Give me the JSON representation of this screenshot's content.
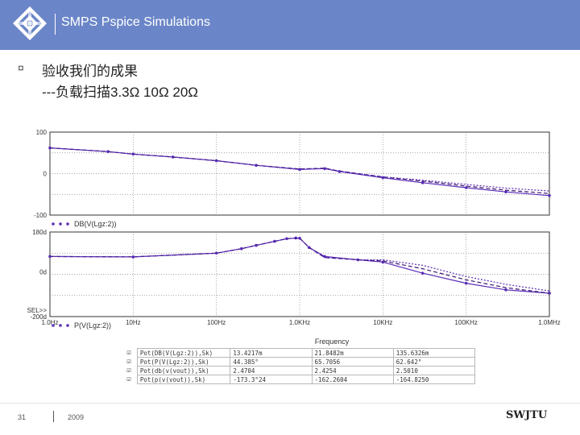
{
  "header": {
    "title": "SMPS Pspice Simulations"
  },
  "slide": {
    "bullet": "¤",
    "line1": "验收我们的成果",
    "line2": "---负载扫描3.3Ω 10Ω 20Ω"
  },
  "footer": {
    "page": "31",
    "year": "2009",
    "logo_text": "SWJTU"
  },
  "colors": {
    "accent": "#6b86c8",
    "trace": "#5a2bb8",
    "trace_dark": "#3a1470",
    "grid": "#888888"
  },
  "chart_data": [
    {
      "type": "line",
      "panel": "magnitude",
      "x_scale": "log",
      "xlim": [
        1,
        1000000
      ],
      "ylim": [
        -100,
        100
      ],
      "y_ticks": [
        {
          "v": 100,
          "label": "100"
        },
        {
          "v": 0,
          "label": "0"
        },
        {
          "v": -100,
          "label": "-100"
        }
      ],
      "legend": "DB(V(Lgz:2))",
      "series": [
        {
          "x": [
            1,
            5,
            10,
            30,
            100,
            300,
            1000,
            2000,
            3000,
            10000,
            30000,
            100000,
            300000,
            1000000
          ],
          "y": [
            62,
            53,
            47,
            40,
            31,
            20,
            10,
            12,
            5,
            -10,
            -22,
            -34,
            -44,
            -53
          ]
        },
        {
          "x": [
            1,
            5,
            10,
            30,
            100,
            300,
            1000,
            2000,
            3000,
            10000,
            30000,
            100000,
            300000,
            1000000
          ],
          "y": [
            62,
            53,
            47,
            40,
            31,
            20,
            11,
            13,
            6,
            -8,
            -18,
            -30,
            -40,
            -48
          ]
        },
        {
          "x": [
            1,
            5,
            10,
            30,
            100,
            300,
            1000,
            2000,
            3000,
            10000,
            30000,
            100000,
            300000,
            1000000
          ],
          "y": [
            62,
            53,
            47,
            40,
            31,
            20,
            11,
            13,
            6,
            -8,
            -16,
            -26,
            -35,
            -42
          ]
        }
      ]
    },
    {
      "type": "line",
      "panel": "phase",
      "x_scale": "log",
      "xlim": [
        1,
        1000000
      ],
      "ylim": [
        -200,
        180
      ],
      "y_ticks": [
        {
          "v": 180,
          "label": "180d"
        },
        {
          "v": 0,
          "label": "0d"
        },
        {
          "v": -200,
          "label": "-200d"
        }
      ],
      "y_marker_label": "SEL>>",
      "legend": "P(V(Lgz:2))",
      "x_ticks": [
        {
          "v": 1,
          "label": "1.0Hz"
        },
        {
          "v": 10,
          "label": "10Hz"
        },
        {
          "v": 100,
          "label": "100Hz"
        },
        {
          "v": 1000,
          "label": "1.0KHz"
        },
        {
          "v": 10000,
          "label": "10KHz"
        },
        {
          "v": 100000,
          "label": "100KHz"
        },
        {
          "v": 1000000,
          "label": "1.0MHz"
        }
      ],
      "xlabel": "Frequency",
      "series": [
        {
          "x": [
            1,
            10,
            100,
            200,
            300,
            500,
            700,
            900,
            1000,
            1300,
            2000,
            5000,
            10000,
            30000,
            100000,
            300000,
            1000000
          ],
          "y": [
            70,
            68,
            85,
            105,
            120,
            138,
            150,
            153,
            152,
            110,
            70,
            55,
            45,
            -5,
            -50,
            -80,
            -95
          ]
        },
        {
          "x": [
            1,
            10,
            100,
            200,
            300,
            500,
            700,
            900,
            1000,
            1300,
            2000,
            5000,
            10000,
            30000,
            100000,
            300000,
            1000000
          ],
          "y": [
            70,
            68,
            85,
            105,
            120,
            138,
            150,
            153,
            152,
            110,
            65,
            55,
            50,
            15,
            -35,
            -70,
            -95
          ]
        },
        {
          "x": [
            1,
            10,
            100,
            200,
            300,
            500,
            700,
            900,
            1000,
            1300,
            2000,
            5000,
            10000,
            30000,
            100000,
            300000,
            1000000
          ],
          "y": [
            70,
            68,
            85,
            105,
            120,
            138,
            150,
            153,
            152,
            110,
            65,
            55,
            55,
            30,
            -20,
            -55,
            -85
          ]
        }
      ]
    }
  ],
  "results_table": [
    {
      "name": "Pot(DB(V(Lgz:2)),Sk)",
      "v1": "13.4217m",
      "v2": "21.8482m",
      "v3": "135.6326m"
    },
    {
      "name": "Pot(P(V(Lgz:2)),Sk)",
      "v1": "44.385°",
      "v2": "65.7056",
      "v3": "62.642°"
    },
    {
      "name": "Pot(db(v(vout)),Sk)",
      "v1": "2.4704",
      "v2": "2.4254",
      "v3": "2.5010"
    },
    {
      "name": "Pot(p(v(vout)),Sk)",
      "v1": "-173.3°24",
      "v2": "-162.2604",
      "v3": "-164.8250"
    }
  ]
}
